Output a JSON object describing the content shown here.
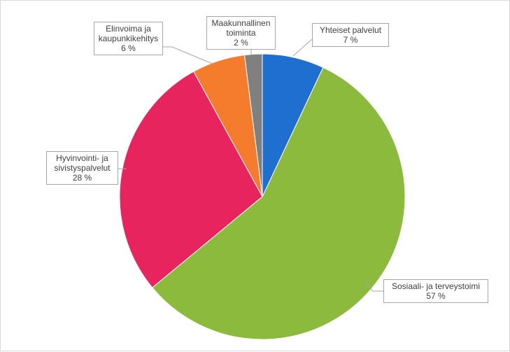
{
  "chart_data": {
    "type": "pie",
    "categories": [
      "Yhteiset palvelut",
      "Sosiaali- ja terveystoimi",
      "Hyvinvointi- ja sivistyspalvelut",
      "Elinvoima ja kaupunkikehitys",
      "Maakunnallinen toiminta"
    ],
    "values": [
      7,
      57,
      28,
      6,
      2
    ],
    "value_labels": [
      "7 %",
      "57 %",
      "28 %",
      "6 %",
      "2 %"
    ],
    "colors": [
      "#1f6fd0",
      "#8cba3c",
      "#e8245e",
      "#f47c2c",
      "#808080"
    ]
  }
}
